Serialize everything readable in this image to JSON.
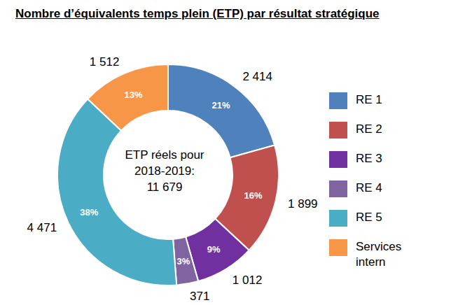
{
  "chart_data": {
    "type": "donut",
    "title": "Nombre d’équivalents temps plein (ETP) par résultat stratégique",
    "center_label": [
      "ETP réels pour",
      "2018-2019:",
      "11 679"
    ],
    "categories": [
      "RE 1",
      "RE 2",
      "RE 3",
      "RE 4",
      "RE 5",
      "Services intern"
    ],
    "values": [
      2414,
      1899,
      1012,
      371,
      4471,
      1512
    ],
    "value_labels": [
      "2 414",
      "1 899",
      "1 012",
      "371",
      "4 471",
      "1 512"
    ],
    "percent_labels": [
      "21%",
      "16%",
      "9%",
      "3%",
      "38%",
      "13%"
    ],
    "colors": [
      "#4f81bd",
      "#c0504d",
      "#7030a0",
      "#8064a2",
      "#4bacc6",
      "#f79646"
    ],
    "data_labels": true,
    "legend": "right"
  }
}
